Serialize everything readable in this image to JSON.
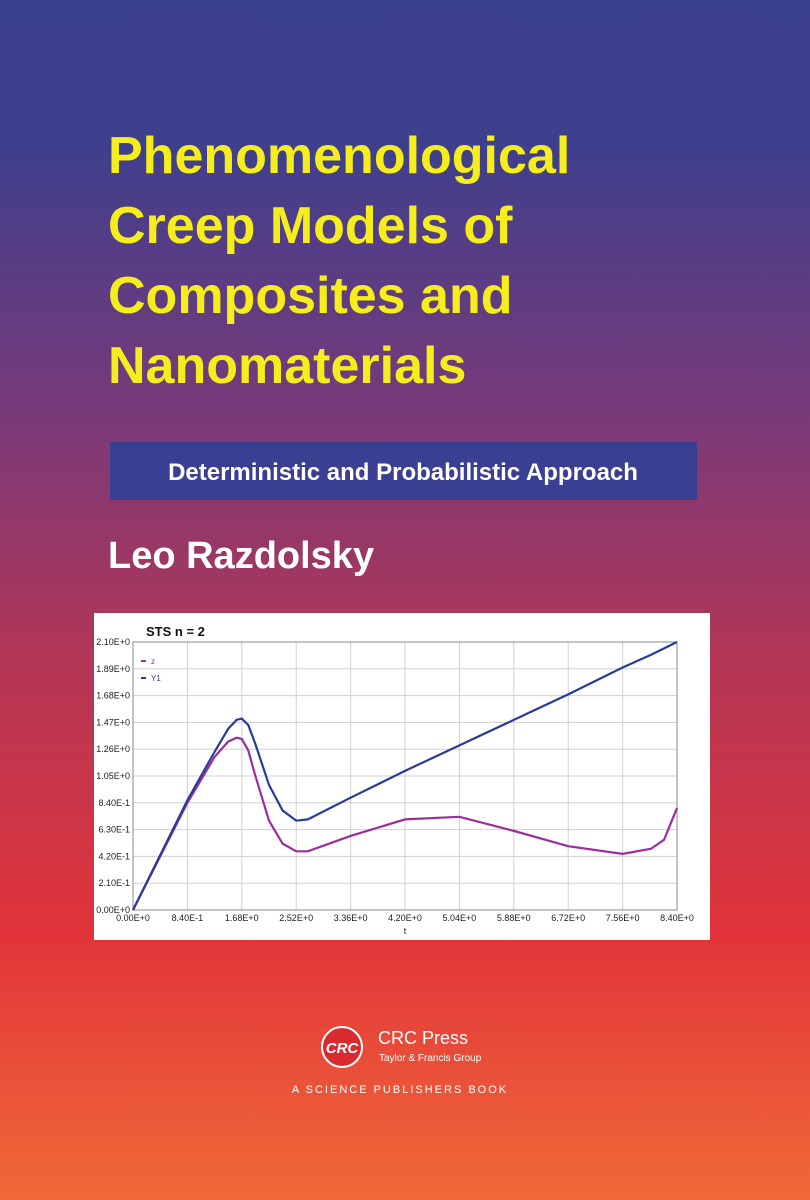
{
  "cover": {
    "title": [
      "Phenomenological",
      "Creep Models of",
      "Composites and",
      "Nanomaterials"
    ],
    "subtitle": "Deterministic and Probabilistic Approach",
    "author": "Leo Razdolsky",
    "logo": "CRC",
    "publisher": "CRC Press",
    "group": "Taylor & Francis Group",
    "tagline": "A SCIENCE PUBLISHERS BOOK"
  },
  "chart_data": {
    "type": "line",
    "title": "STS n = 2",
    "x_label": "t",
    "x": [
      0,
      0.42,
      0.84,
      1.26,
      1.47,
      1.6,
      1.68,
      1.78,
      1.89,
      2.1,
      2.31,
      2.52,
      2.7,
      3.36,
      4.2,
      5.04,
      5.88,
      6.72,
      7.56,
      8.0,
      8.2,
      8.4
    ],
    "series": [
      {
        "name": "z",
        "color": "#9b2e9b",
        "values": [
          0,
          0.42,
          0.84,
          1.2,
          1.32,
          1.35,
          1.34,
          1.25,
          1.05,
          0.7,
          0.52,
          0.46,
          0.46,
          0.58,
          0.71,
          0.73,
          0.62,
          0.5,
          0.44,
          0.48,
          0.55,
          0.8
        ]
      },
      {
        "name": "Y1",
        "color": "#2a3b96",
        "values": [
          0,
          0.43,
          0.86,
          1.24,
          1.42,
          1.49,
          1.5,
          1.45,
          1.3,
          0.98,
          0.78,
          0.7,
          0.71,
          0.88,
          1.09,
          1.29,
          1.49,
          1.69,
          1.9,
          2.0,
          2.05,
          2.1
        ]
      }
    ],
    "xlim": [
      0,
      8.4
    ],
    "ylim": [
      0,
      2.1
    ],
    "xticks": [
      {
        "value": 0,
        "label": "0.00E+0"
      },
      {
        "value": 0.84,
        "label": "8.40E-1"
      },
      {
        "value": 1.68,
        "label": "1.68E+0"
      },
      {
        "value": 2.52,
        "label": "2.52E+0"
      },
      {
        "value": 3.36,
        "label": "3.36E+0"
      },
      {
        "value": 4.2,
        "label": "4.20E+0"
      },
      {
        "value": 5.04,
        "label": "5.04E+0"
      },
      {
        "value": 5.88,
        "label": "5.88E+0"
      },
      {
        "value": 6.72,
        "label": "6.72E+0"
      },
      {
        "value": 7.56,
        "label": "7.56E+0"
      },
      {
        "value": 8.4,
        "label": "8.40E+0"
      }
    ],
    "yticks": [
      {
        "value": 0,
        "label": "0.00E+0"
      },
      {
        "value": 0.21,
        "label": "2.10E-1"
      },
      {
        "value": 0.42,
        "label": "4.20E-1"
      },
      {
        "value": 0.63,
        "label": "6.30E-1"
      },
      {
        "value": 0.84,
        "label": "8.40E-1"
      },
      {
        "value": 1.05,
        "label": "1.05E+0"
      },
      {
        "value": 1.26,
        "label": "1.26E+0"
      },
      {
        "value": 1.47,
        "label": "1.47E+0"
      },
      {
        "value": 1.68,
        "label": "1.68E+0"
      },
      {
        "value": 1.89,
        "label": "1.89E+0"
      },
      {
        "value": 2.1,
        "label": "2.10E+0"
      }
    ],
    "grid": true
  }
}
